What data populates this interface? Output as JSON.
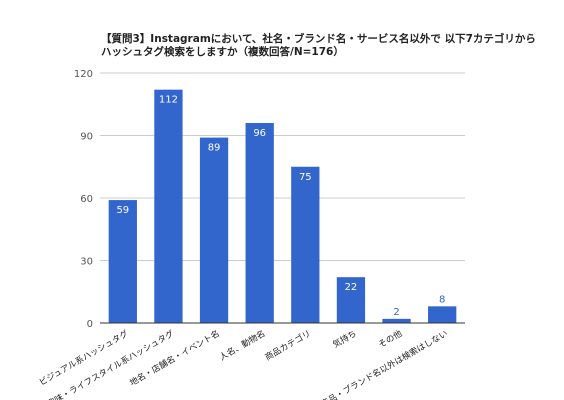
{
  "chart_data": {
    "type": "bar",
    "title_lines": [
      "【質問3】Instagramにおいて、社名・ブランド名・サービス名以外で 以下7カテゴリから",
      "ハッシュタグ検索をしますか（複数回答/N=176）"
    ],
    "categories": [
      "ビジュアル系ハッシュタグ",
      "趣味・ライフスタイル系ハッシュタグ",
      "地名・店舗名・イベント名",
      "人名、動物名",
      "商品カテゴリ",
      "気持ち",
      "その他",
      "商品・ブランド名以外は検索はしない"
    ],
    "values": [
      59,
      112,
      89,
      96,
      75,
      22,
      2,
      8
    ],
    "value_labels": [
      "59",
      "112",
      "89",
      "96",
      "75",
      "22",
      "2",
      "8"
    ],
    "yticks": [
      "0",
      "30",
      "60",
      "90",
      "120"
    ],
    "ylim": [
      0,
      120
    ],
    "grid": true,
    "legend": "none",
    "colors": {
      "bar": "#3366cc",
      "grid": "#cccccc",
      "axis": "#333333",
      "label_inside": "#ffffff",
      "label_outside": "#3366cc"
    }
  }
}
